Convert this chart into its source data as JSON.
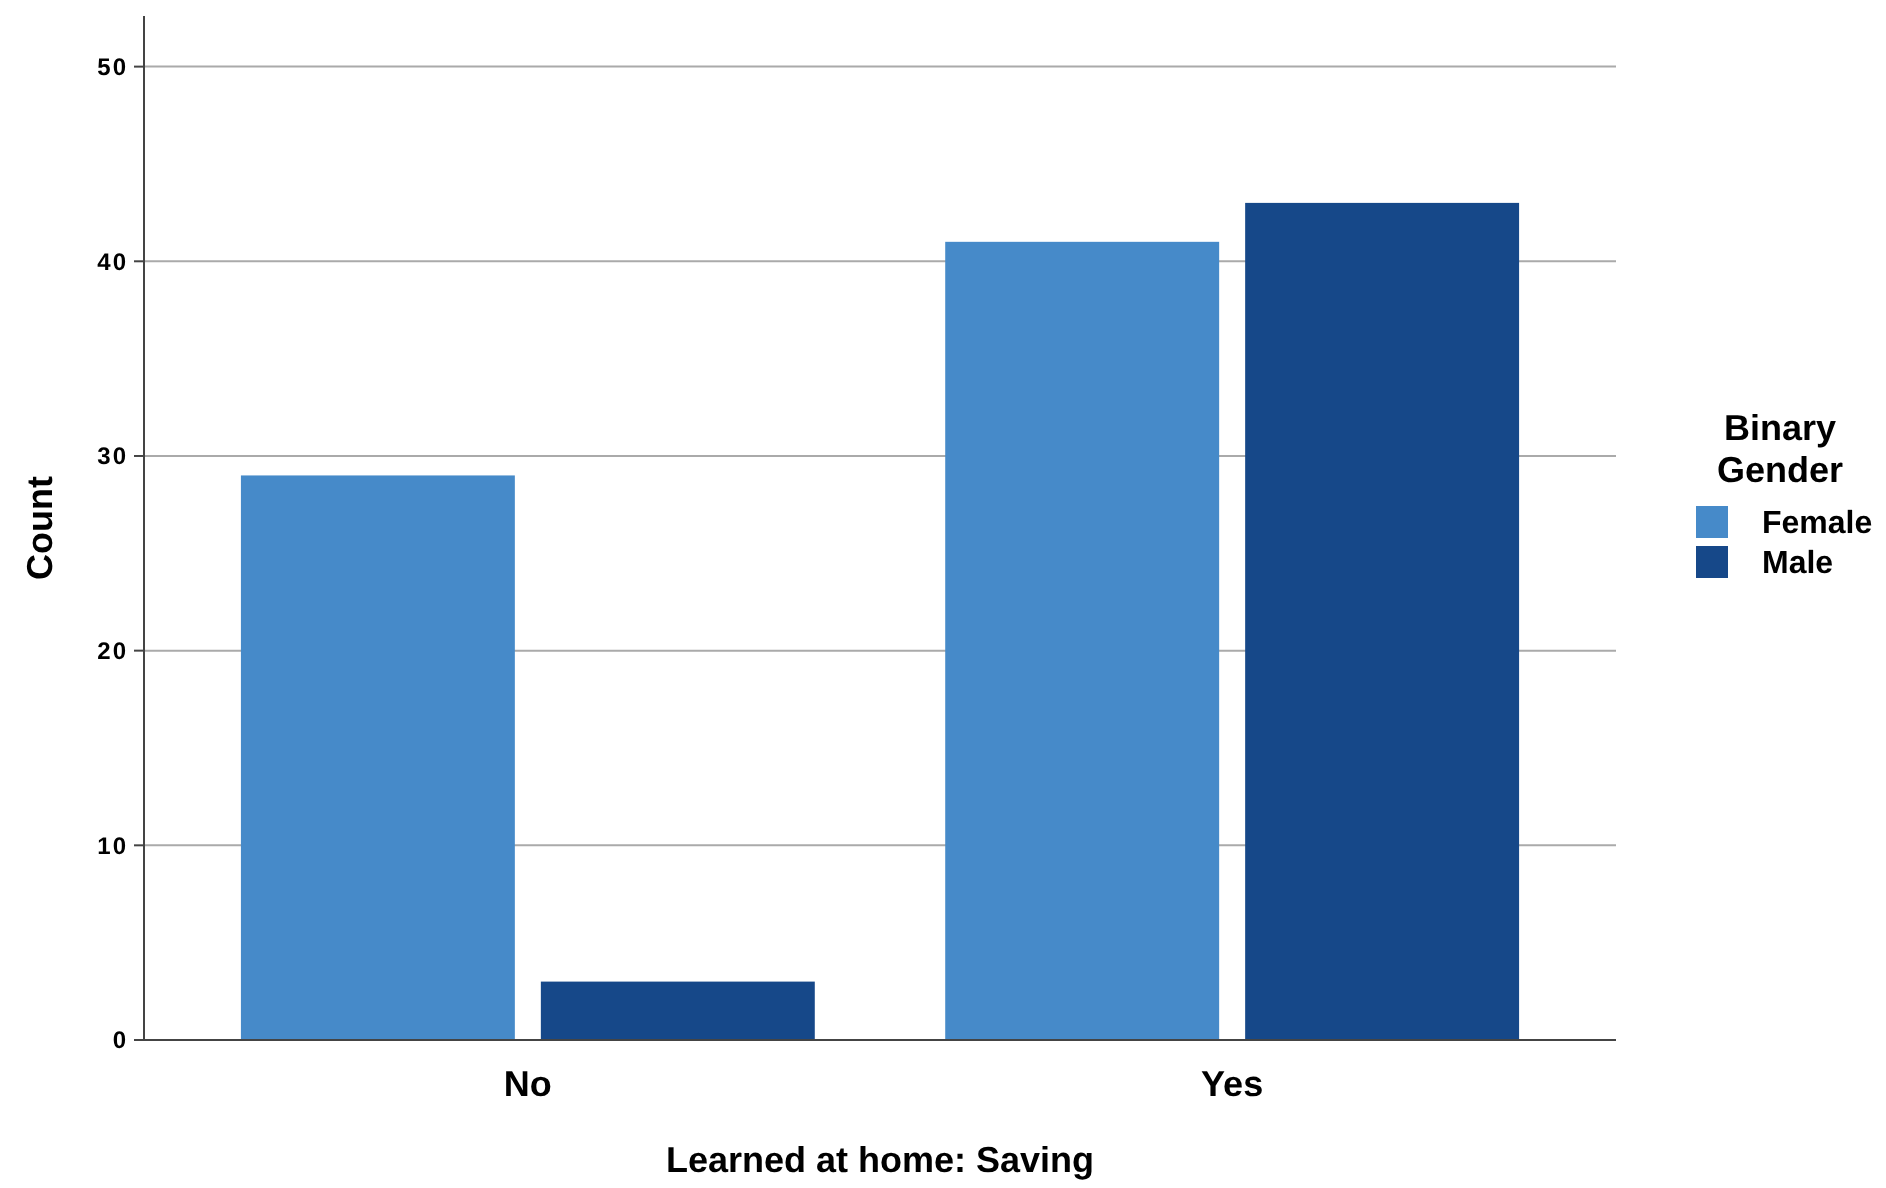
{
  "chart_data": {
    "type": "bar",
    "xlabel": "Learned at home: Saving",
    "ylabel": "Count",
    "legend_title": "Binary Gender",
    "categories": [
      "No",
      "Yes"
    ],
    "series": [
      {
        "name": "Female",
        "color": "#468ac9",
        "values": [
          29,
          41
        ]
      },
      {
        "name": "Male",
        "color": "#164889",
        "values": [
          3,
          43
        ]
      }
    ],
    "ylim": [
      0,
      52.6
    ],
    "yticks": [
      0,
      10,
      20,
      30,
      40,
      50
    ],
    "grid": "y",
    "legend": "right"
  }
}
